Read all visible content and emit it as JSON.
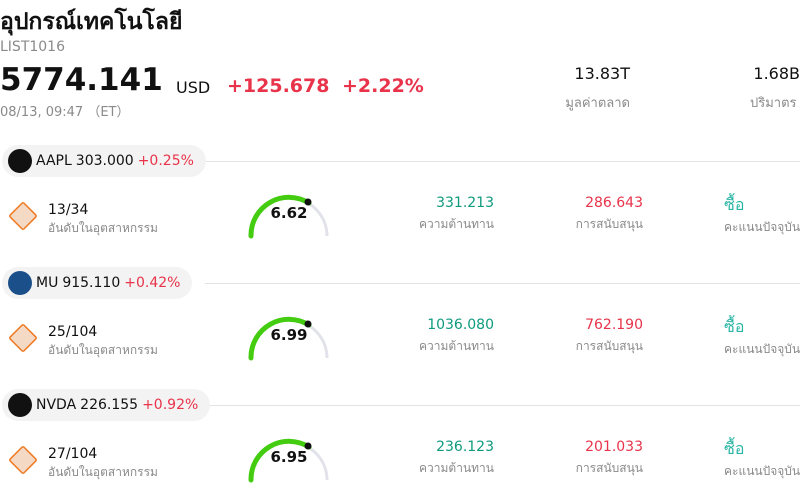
{
  "header": {
    "title": "อุปกรณ์เทคโนโลยี",
    "code": "LIST1016",
    "price": "5774.141",
    "currency": "USD",
    "change": "+125.678",
    "change_pct": "+2.22%",
    "time": "08/13, 09:47 （ET）",
    "market_cap": "13.83T",
    "market_cap_label": "มูลค่าตลาด",
    "volume": "1.68B",
    "volume_label": "ปริมาตร"
  },
  "stocks": [
    {
      "ticker": "AAPL",
      "price": "303.000",
      "change_pct": "+0.25%",
      "rank": "13/34",
      "rank_label": "อันดับในอุตสาหกรรม",
      "score": "6.62",
      "resistance": "331.213",
      "resistance_label": "ความต้านทาน",
      "support": "286.643",
      "support_label": "การสนับสนุน",
      "signal": "ซื้อ",
      "signal_label": "คะแนนปัจจุบัน"
    },
    {
      "ticker": "MU",
      "price": "915.110",
      "change_pct": "+0.42%",
      "rank": "25/104",
      "rank_label": "อันดับในอุตสาหกรรม",
      "score": "6.99",
      "resistance": "1036.080",
      "resistance_label": "ความต้านทาน",
      "support": "762.190",
      "support_label": "การสนับสนุน",
      "signal": "ซื้อ",
      "signal_label": "คะแนนปัจจุบัน"
    },
    {
      "ticker": "NVDA",
      "price": "226.155",
      "change_pct": "+0.92%",
      "rank": "27/104",
      "rank_label": "อันดับในอุตสาหกรรม",
      "score": "6.95",
      "resistance": "236.123",
      "resistance_label": "ความต้านทาน",
      "support": "201.033",
      "support_label": "การสนับสนุน",
      "signal": "ซื้อ",
      "signal_label": "คะแนนปัจจุบัน"
    }
  ]
}
